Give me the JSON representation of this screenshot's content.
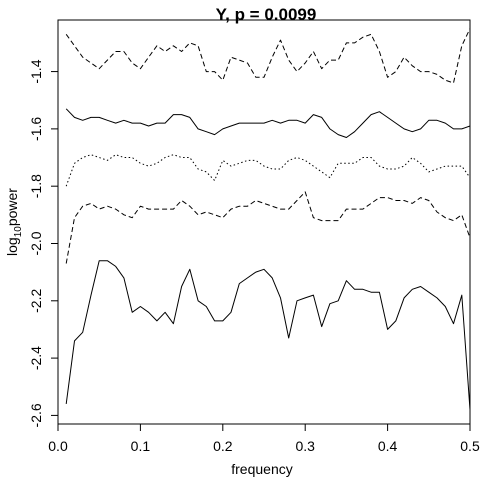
{
  "chart_data": {
    "type": "line",
    "title": "Y, p = 0.0099",
    "xlabel": "frequency",
    "ylabel_base": "log",
    "ylabel_sub": "10",
    "ylabel_rest": "power",
    "xlim": [
      0.0,
      0.5
    ],
    "ylim": [
      -2.63,
      -1.22
    ],
    "x_ticks": [
      0.0,
      0.1,
      0.2,
      0.3,
      0.4,
      0.5
    ],
    "x_tick_labels": [
      "0.0",
      "0.1",
      "0.2",
      "0.3",
      "0.4",
      "0.5"
    ],
    "y_ticks": [
      -2.6,
      -2.4,
      -2.2,
      -2.0,
      -1.8,
      -1.6,
      -1.4
    ],
    "y_tick_labels": [
      "-2.6",
      "-2.4",
      "-2.2",
      "-2.0",
      "-1.8",
      "-1.6",
      "-1.4"
    ],
    "grid": false,
    "legend": "none",
    "x": [
      0.01,
      0.02,
      0.03,
      0.04,
      0.05,
      0.06,
      0.07,
      0.08,
      0.09,
      0.1,
      0.11,
      0.12,
      0.13,
      0.14,
      0.15,
      0.16,
      0.17,
      0.18,
      0.19,
      0.2,
      0.21,
      0.22,
      0.23,
      0.24,
      0.25,
      0.26,
      0.27,
      0.28,
      0.29,
      0.3,
      0.31,
      0.32,
      0.33,
      0.34,
      0.35,
      0.36,
      0.37,
      0.38,
      0.39,
      0.4,
      0.41,
      0.42,
      0.43,
      0.44,
      0.45,
      0.46,
      0.47,
      0.48,
      0.49,
      0.5
    ],
    "series": [
      {
        "line_style": "dashed",
        "values": [
          -1.27,
          -1.31,
          -1.35,
          -1.37,
          -1.39,
          -1.36,
          -1.33,
          -1.33,
          -1.37,
          -1.39,
          -1.35,
          -1.31,
          -1.33,
          -1.31,
          -1.33,
          -1.3,
          -1.31,
          -1.4,
          -1.4,
          -1.43,
          -1.35,
          -1.36,
          -1.37,
          -1.42,
          -1.42,
          -1.35,
          -1.29,
          -1.36,
          -1.4,
          -1.37,
          -1.33,
          -1.39,
          -1.36,
          -1.36,
          -1.3,
          -1.3,
          -1.28,
          -1.27,
          -1.33,
          -1.42,
          -1.4,
          -1.35,
          -1.38,
          -1.4,
          -1.4,
          -1.41,
          -1.43,
          -1.44,
          -1.31,
          -1.25
        ]
      },
      {
        "line_style": "solid",
        "values": [
          -1.53,
          -1.56,
          -1.57,
          -1.56,
          -1.56,
          -1.57,
          -1.58,
          -1.57,
          -1.58,
          -1.58,
          -1.59,
          -1.58,
          -1.58,
          -1.55,
          -1.55,
          -1.56,
          -1.6,
          -1.61,
          -1.62,
          -1.6,
          -1.59,
          -1.58,
          -1.58,
          -1.58,
          -1.58,
          -1.57,
          -1.58,
          -1.57,
          -1.57,
          -1.58,
          -1.55,
          -1.56,
          -1.6,
          -1.62,
          -1.63,
          -1.61,
          -1.58,
          -1.55,
          -1.54,
          -1.56,
          -1.58,
          -1.6,
          -1.61,
          -1.6,
          -1.57,
          -1.57,
          -1.58,
          -1.6,
          -1.6,
          -1.59
        ]
      },
      {
        "line_style": "dotted",
        "values": [
          -1.8,
          -1.72,
          -1.7,
          -1.69,
          -1.7,
          -1.71,
          -1.69,
          -1.7,
          -1.7,
          -1.72,
          -1.73,
          -1.72,
          -1.7,
          -1.69,
          -1.7,
          -1.7,
          -1.74,
          -1.75,
          -1.78,
          -1.71,
          -1.73,
          -1.72,
          -1.71,
          -1.71,
          -1.73,
          -1.74,
          -1.74,
          -1.71,
          -1.7,
          -1.71,
          -1.73,
          -1.75,
          -1.77,
          -1.72,
          -1.72,
          -1.72,
          -1.7,
          -1.7,
          -1.73,
          -1.74,
          -1.74,
          -1.73,
          -1.7,
          -1.72,
          -1.75,
          -1.74,
          -1.73,
          -1.73,
          -1.73,
          -1.77
        ]
      },
      {
        "line_style": "dashed",
        "values": [
          -2.07,
          -1.91,
          -1.87,
          -1.86,
          -1.88,
          -1.87,
          -1.88,
          -1.9,
          -1.91,
          -1.87,
          -1.88,
          -1.88,
          -1.88,
          -1.88,
          -1.85,
          -1.87,
          -1.9,
          -1.89,
          -1.9,
          -1.91,
          -1.88,
          -1.87,
          -1.87,
          -1.85,
          -1.86,
          -1.87,
          -1.88,
          -1.88,
          -1.85,
          -1.82,
          -1.91,
          -1.92,
          -1.92,
          -1.92,
          -1.88,
          -1.88,
          -1.88,
          -1.86,
          -1.84,
          -1.84,
          -1.85,
          -1.85,
          -1.86,
          -1.84,
          -1.85,
          -1.89,
          -1.91,
          -1.92,
          -1.9,
          -1.98
        ]
      },
      {
        "line_style": "solid",
        "values": [
          -2.56,
          -2.34,
          -2.31,
          -2.18,
          -2.06,
          -2.06,
          -2.08,
          -2.12,
          -2.24,
          -2.22,
          -2.24,
          -2.27,
          -2.24,
          -2.28,
          -2.15,
          -2.09,
          -2.2,
          -2.22,
          -2.27,
          -2.27,
          -2.24,
          -2.14,
          -2.12,
          -2.1,
          -2.09,
          -2.12,
          -2.19,
          -2.33,
          -2.2,
          -2.19,
          -2.18,
          -2.29,
          -2.21,
          -2.2,
          -2.13,
          -2.16,
          -2.16,
          -2.17,
          -2.17,
          -2.3,
          -2.27,
          -2.19,
          -2.16,
          -2.15,
          -2.17,
          -2.19,
          -2.22,
          -2.28,
          -2.18,
          -2.58
        ]
      }
    ]
  }
}
